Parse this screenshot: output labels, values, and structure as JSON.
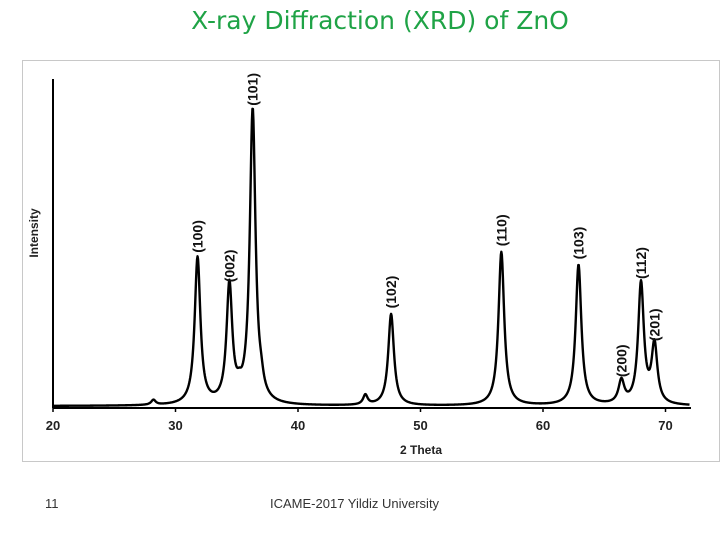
{
  "slide": {
    "title": "X-ray Diffraction (XRD) of ZnO",
    "page_number": "11",
    "footer": "ICAME-2017 Yildiz University",
    "title_color": "#1fa346"
  },
  "chart_data": {
    "type": "line",
    "title": "",
    "xlabel": "2 Theta",
    "ylabel": "Intensity",
    "xlim": [
      20,
      72
    ],
    "ylim": [
      0,
      1
    ],
    "x_ticks": [
      20,
      30,
      40,
      50,
      60,
      70
    ],
    "x_tick_labels": [
      "20",
      "30",
      "40",
      "50",
      "60",
      "70"
    ],
    "grid": false,
    "legend": "none",
    "peaks": [
      {
        "label": "(100)",
        "two_theta": 31.8,
        "intensity": 0.45
      },
      {
        "label": "(002)",
        "two_theta": 34.4,
        "intensity": 0.36
      },
      {
        "label": "(101)",
        "two_theta": 36.3,
        "intensity": 0.9
      },
      {
        "label": "(102)",
        "two_theta": 47.6,
        "intensity": 0.28
      },
      {
        "label": "(110)",
        "two_theta": 56.6,
        "intensity": 0.47
      },
      {
        "label": "(103)",
        "two_theta": 62.9,
        "intensity": 0.43
      },
      {
        "label": "(200)",
        "two_theta": 66.4,
        "intensity": 0.07
      },
      {
        "label": "(112)",
        "two_theta": 68.0,
        "intensity": 0.37
      },
      {
        "label": "(201)",
        "two_theta": 69.1,
        "intensity": 0.18
      }
    ],
    "minor_peaks": [
      {
        "two_theta": 28.2,
        "intensity": 0.015
      },
      {
        "two_theta": 35.2,
        "intensity": 0.02
      },
      {
        "two_theta": 37.0,
        "intensity": 0.03
      },
      {
        "two_theta": 45.5,
        "intensity": 0.03
      }
    ],
    "line_color": "#000000"
  }
}
